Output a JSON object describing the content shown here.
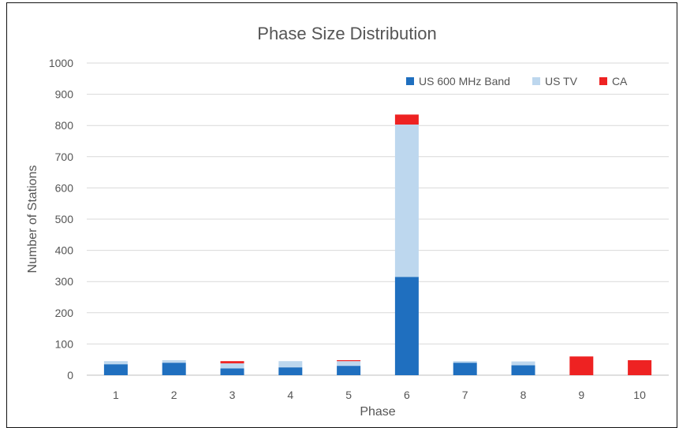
{
  "chart_data": {
    "type": "bar",
    "stacked": true,
    "title": "Phase Size Distribution",
    "xlabel": "Phase",
    "ylabel": "Number of Stations",
    "categories": [
      "1",
      "2",
      "3",
      "4",
      "5",
      "6",
      "7",
      "8",
      "9",
      "10"
    ],
    "series": [
      {
        "name": "US 600 MHz Band",
        "color": "#1f6fbf",
        "values": [
          35,
          40,
          22,
          25,
          30,
          315,
          40,
          32,
          0,
          0
        ]
      },
      {
        "name": "US TV",
        "color": "#bdd7ee",
        "values": [
          10,
          8,
          16,
          20,
          15,
          488,
          5,
          12,
          0,
          0
        ]
      },
      {
        "name": "CA",
        "color": "#ee2222",
        "values": [
          0,
          0,
          7,
          0,
          3,
          32,
          0,
          0,
          60,
          48
        ]
      }
    ],
    "ylim": [
      0,
      1000
    ],
    "yticks": [
      0,
      100,
      200,
      300,
      400,
      500,
      600,
      700,
      800,
      900,
      1000
    ],
    "grid": true,
    "legend_position": "top-right"
  }
}
